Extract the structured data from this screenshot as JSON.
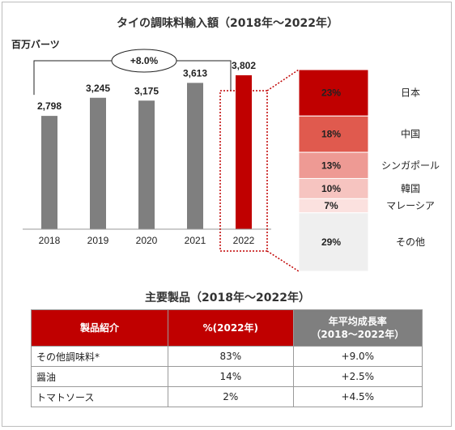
{
  "title": "タイの調味料輸入額（2018年～2022年）",
  "unit": "百万バーツ",
  "growth_label": "+8.0%",
  "chart_data": [
    {
      "type": "bar",
      "title": "タイの調味料輸入額（2018年～2022年）",
      "ylabel": "百万バーツ",
      "categories": [
        "2018",
        "2019",
        "2020",
        "2021",
        "2022"
      ],
      "values": [
        2798,
        3245,
        3175,
        3613,
        3802
      ],
      "value_labels": [
        "2,798",
        "3,245",
        "3,175",
        "3,613",
        "3,802"
      ],
      "ylim": [
        0,
        4200
      ],
      "bar_color": "#7f7f7f",
      "highlight_index": 4,
      "highlight_color": "#c00000",
      "grid": false
    },
    {
      "type": "bar",
      "subtype": "stacked-100",
      "category": "2022",
      "segments": [
        {
          "name": "日本",
          "value": 23,
          "label": "23%",
          "color": "#c00000"
        },
        {
          "name": "中国",
          "value": 18,
          "label": "18%",
          "color": "#e05a4e"
        },
        {
          "name": "シンガポール",
          "value": 13,
          "label": "13%",
          "color": "#ee9a94"
        },
        {
          "name": "韓国",
          "value": 10,
          "label": "10%",
          "color": "#f6c4c0"
        },
        {
          "name": "マレーシア",
          "value": 7,
          "label": "7%",
          "color": "#fbe1df"
        },
        {
          "name": "その他",
          "value": 29,
          "label": "29%",
          "color": "#efefef"
        }
      ]
    }
  ],
  "products_section": {
    "title": "主要製品（2018年～2022年）",
    "headers": [
      "製品紹介",
      "%(2022年)",
      "年平均成長率",
      "（2018～2022年）"
    ],
    "rows": [
      [
        "その他調味料*",
        "83%",
        "+9.0%"
      ],
      [
        "醤油",
        "14%",
        "+2.5%"
      ],
      [
        "トマトソース",
        "2%",
        "+4.5%"
      ]
    ]
  }
}
